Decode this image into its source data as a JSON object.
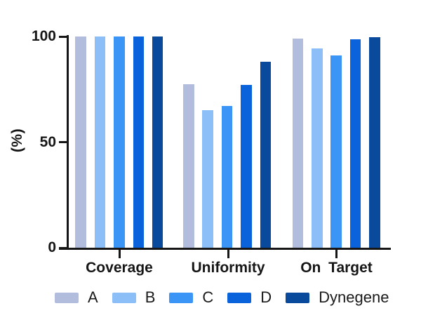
{
  "chart_data": {
    "type": "bar",
    "title": "",
    "xlabel": "",
    "ylabel": "(%)",
    "ylim": [
      0,
      100
    ],
    "yticks": [
      0,
      50,
      100
    ],
    "grid": false,
    "legend_position": "bottom",
    "background_color": "#ffffff",
    "axis_color": "#161616",
    "categories": [
      "Coverage",
      "Uniformity",
      "On Target"
    ],
    "series": [
      {
        "name": "A",
        "color": "#b2bcdd",
        "values": [
          100,
          77.5,
          99
        ]
      },
      {
        "name": "B",
        "color": "#8cbef7",
        "values": [
          100,
          65,
          94.4
        ]
      },
      {
        "name": "C",
        "color": "#3a95f7",
        "values": [
          100,
          67,
          91
        ]
      },
      {
        "name": "D",
        "color": "#0a63da",
        "values": [
          100,
          77,
          98.8
        ]
      },
      {
        "name": "Dynegene",
        "color": "#094a9c",
        "values": [
          100,
          88,
          99.8
        ]
      }
    ]
  }
}
